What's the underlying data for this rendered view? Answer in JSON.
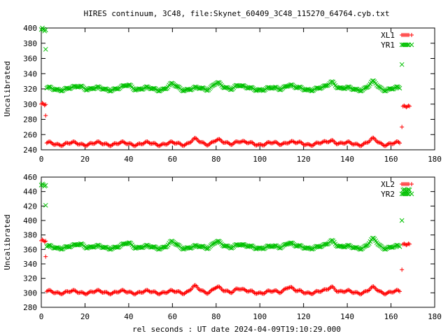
{
  "title": "HIRES continuum, 3C48, file:Skynet_60409_3C48_115270_64764.cyb.txt",
  "xlabel": "rel seconds : UT date 2024-04-09T19:10:29.000",
  "colors": {
    "series_1": "#ff0000",
    "series_2": "#00c000",
    "axis": "#000000"
  },
  "chart_data": [
    {
      "type": "scatter",
      "ylabel": "Uncalibrated",
      "xlim": [
        0,
        180
      ],
      "ylim": [
        240,
        400
      ],
      "xticks": [
        0,
        20,
        40,
        60,
        80,
        100,
        120,
        140,
        160,
        180
      ],
      "yticks": [
        240,
        260,
        280,
        300,
        320,
        340,
        360,
        380,
        400
      ],
      "legend_position": "top-right",
      "series": [
        {
          "name": "XL1",
          "marker": "+",
          "color": "#ff0000",
          "segments": [
            {
              "x_start": 0,
              "x_end": 2,
              "step": 0.5,
              "base": 300,
              "amp": 1.5
            },
            {
              "x_start": 2,
              "x_end": 2.1,
              "step": 1,
              "base": 285,
              "amp": 0
            },
            {
              "x_start": 2.5,
              "x_end": 164,
              "step": 0.5,
              "base": 248,
              "amp": 3
            },
            {
              "x_start": 165,
              "x_end": 165.1,
              "step": 1,
              "base": 270,
              "amp": 0
            },
            {
              "x_start": 165.5,
              "x_end": 168.5,
              "step": 0.5,
              "base": 297,
              "amp": 1
            }
          ],
          "bumps": [
            [
              70,
              5
            ],
            [
              80,
              5
            ],
            [
              90,
              4
            ],
            [
              113,
              3
            ],
            [
              133,
              5
            ],
            [
              152,
              5
            ]
          ]
        },
        {
          "name": "YR1",
          "marker": "x",
          "color": "#00c000",
          "segments": [
            {
              "x_start": 0,
              "x_end": 2,
              "step": 0.5,
              "base": 398,
              "amp": 2
            },
            {
              "x_start": 2,
              "x_end": 2.1,
              "step": 1,
              "base": 372,
              "amp": 0
            },
            {
              "x_start": 2.5,
              "x_end": 164,
              "step": 0.5,
              "base": 320,
              "amp": 3
            },
            {
              "x_start": 165,
              "x_end": 165.1,
              "step": 1,
              "base": 352,
              "amp": 0
            }
          ],
          "bumps": [
            [
              18,
              4
            ],
            [
              40,
              5
            ],
            [
              60,
              5
            ],
            [
              80,
              8
            ],
            [
              90,
              6
            ],
            [
              113,
              6
            ],
            [
              133,
              10
            ],
            [
              152,
              8
            ]
          ]
        }
      ]
    },
    {
      "type": "scatter",
      "ylabel": "Uncalibrated",
      "xlim": [
        0,
        180
      ],
      "ylim": [
        280,
        460
      ],
      "xticks": [
        0,
        20,
        40,
        60,
        80,
        100,
        120,
        140,
        160,
        180
      ],
      "yticks": [
        280,
        300,
        320,
        340,
        360,
        380,
        400,
        420,
        440,
        460
      ],
      "legend_position": "top-right",
      "series": [
        {
          "name": "XL2",
          "marker": "+",
          "color": "#ff0000",
          "segments": [
            {
              "x_start": 0,
              "x_end": 2,
              "step": 0.5,
              "base": 372,
              "amp": 1.5
            },
            {
              "x_start": 2,
              "x_end": 2.1,
              "step": 1,
              "base": 350,
              "amp": 0
            },
            {
              "x_start": 2.5,
              "x_end": 164,
              "step": 0.5,
              "base": 301,
              "amp": 3
            },
            {
              "x_start": 165,
              "x_end": 165.1,
              "step": 1,
              "base": 332,
              "amp": 0
            },
            {
              "x_start": 165.5,
              "x_end": 168.5,
              "step": 0.5,
              "base": 367,
              "amp": 1
            }
          ],
          "bumps": [
            [
              70,
              7
            ],
            [
              80,
              7
            ],
            [
              90,
              6
            ],
            [
              113,
              8
            ],
            [
              133,
              8
            ],
            [
              152,
              5
            ]
          ]
        },
        {
          "name": "YR2",
          "marker": "x",
          "color": "#00c000",
          "segments": [
            {
              "x_start": 0,
              "x_end": 2,
              "step": 0.5,
              "base": 449,
              "amp": 1.5
            },
            {
              "x_start": 2,
              "x_end": 2.1,
              "step": 1,
              "base": 421,
              "amp": 0
            },
            {
              "x_start": 2.5,
              "x_end": 164,
              "step": 0.5,
              "base": 363,
              "amp": 3
            },
            {
              "x_start": 165,
              "x_end": 165.1,
              "step": 1,
              "base": 400,
              "amp": 0
            },
            {
              "x_start": 165.5,
              "x_end": 168.5,
              "step": 0.5,
              "base": 442,
              "amp": 1
            }
          ],
          "bumps": [
            [
              18,
              5
            ],
            [
              40,
              6
            ],
            [
              60,
              6
            ],
            [
              80,
              8
            ],
            [
              90,
              5
            ],
            [
              113,
              7
            ],
            [
              133,
              10
            ],
            [
              152,
              10
            ]
          ]
        }
      ]
    }
  ]
}
